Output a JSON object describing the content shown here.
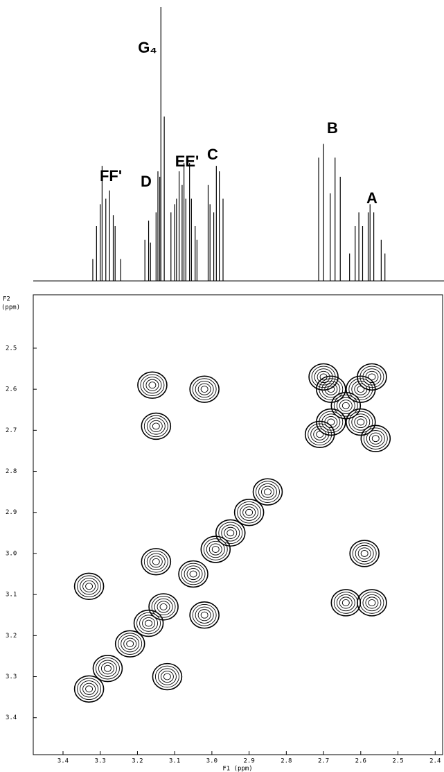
{
  "chart_data": [
    {
      "type": "stick",
      "x": [
        3.32,
        3.31,
        3.3,
        3.295,
        3.285,
        3.275,
        3.265,
        3.26,
        3.245,
        3.18,
        3.17,
        3.165,
        3.15,
        3.145,
        3.14,
        3.137,
        3.128,
        3.11,
        3.1,
        3.095,
        3.088,
        3.08,
        3.075,
        3.07,
        3.06,
        3.055,
        3.045,
        3.04,
        3.01,
        3.005,
        2.995,
        2.988,
        2.98,
        2.97,
        2.713,
        2.7,
        2.682,
        2.669,
        2.655,
        2.63,
        2.615,
        2.605,
        2.595,
        2.58,
        2.575,
        2.565,
        2.545,
        2.535
      ],
      "values": [
        8,
        20,
        28,
        42,
        30,
        33,
        24,
        20,
        8,
        15,
        22,
        14,
        25,
        40,
        38,
        100,
        60,
        25,
        28,
        30,
        40,
        35,
        43,
        30,
        43,
        30,
        20,
        15,
        35,
        28,
        25,
        42,
        40,
        30,
        45,
        50,
        32,
        45,
        38,
        10,
        20,
        25,
        20,
        25,
        28,
        25,
        15,
        10
      ],
      "xlim": [
        3.48,
        2.38
      ],
      "ylim": [
        0,
        100
      ],
      "annotations": [
        "FF'",
        "D",
        "G₄",
        "EE'",
        "C",
        "B",
        "A"
      ]
    },
    {
      "type": "contour",
      "x": [
        3.16,
        3.15,
        3.02,
        2.71,
        2.68,
        2.64,
        2.6,
        2.57,
        2.68,
        2.6,
        2.7,
        2.56,
        2.85,
        2.9,
        2.95,
        2.99,
        3.05,
        3.13,
        3.17,
        3.22,
        3.28,
        3.33,
        3.33,
        3.12,
        3.15,
        3.02,
        2.59,
        2.64,
        2.57
      ],
      "y": [
        2.59,
        2.69,
        2.6,
        2.71,
        2.68,
        2.64,
        2.6,
        2.57,
        2.6,
        2.68,
        2.57,
        2.72,
        2.85,
        2.9,
        2.95,
        2.99,
        3.05,
        3.13,
        3.17,
        3.22,
        3.28,
        3.33,
        3.08,
        3.3,
        3.02,
        3.15,
        3.0,
        3.12,
        3.12
      ],
      "xlim": [
        3.48,
        2.38
      ],
      "ylim": [
        3.49,
        2.37
      ],
      "xticks": [
        3.4,
        3.3,
        3.2,
        3.1,
        {
          "value": 3,
          "label": "3.0"
        },
        2.9,
        2.8,
        2.7,
        2.6,
        2.5,
        2.4
      ],
      "yticks": [
        2.5,
        2.6,
        2.7,
        2.8,
        2.9,
        {
          "value": 3,
          "label": "3.0"
        },
        3.1,
        3.2,
        3.3,
        3.4
      ],
      "xlabel": "F1 (ppm)",
      "ylabel": "F2",
      "ylabel_unit": "(ppm)"
    }
  ]
}
